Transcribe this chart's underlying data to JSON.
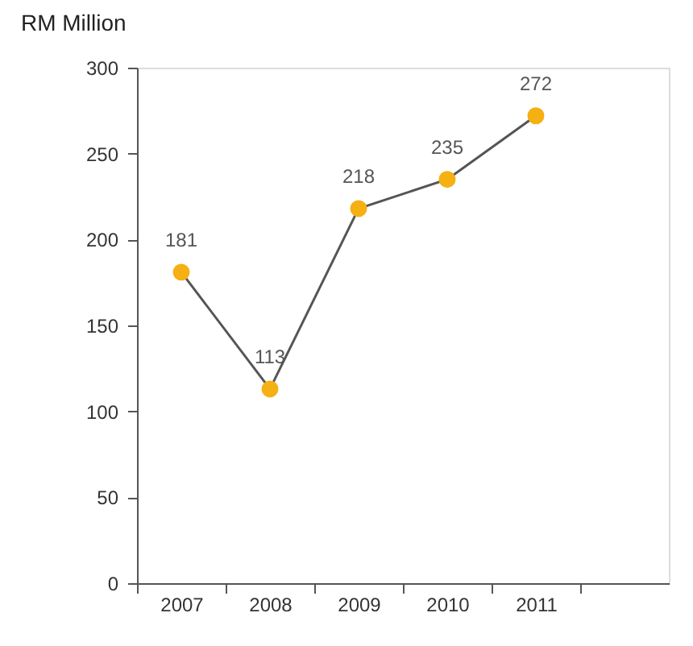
{
  "chart_data": {
    "type": "line",
    "ylabel": "RM Million",
    "categories": [
      "2007",
      "2008",
      "2009",
      "2010",
      "2011"
    ],
    "series": [
      {
        "color": "#555555",
        "colors": [
          "#f5b014",
          "#f5b014",
          "#f5b014",
          "#f5b014",
          "#f5b014"
        ],
        "values": [
          181,
          113,
          218,
          235,
          272
        ]
      }
    ],
    "marker": "circle",
    "ylim": [
      0,
      300
    ],
    "yticks": [
      0,
      50,
      100,
      150,
      200,
      250,
      300
    ],
    "grid": false,
    "legend": false,
    "data_labels": true
  }
}
